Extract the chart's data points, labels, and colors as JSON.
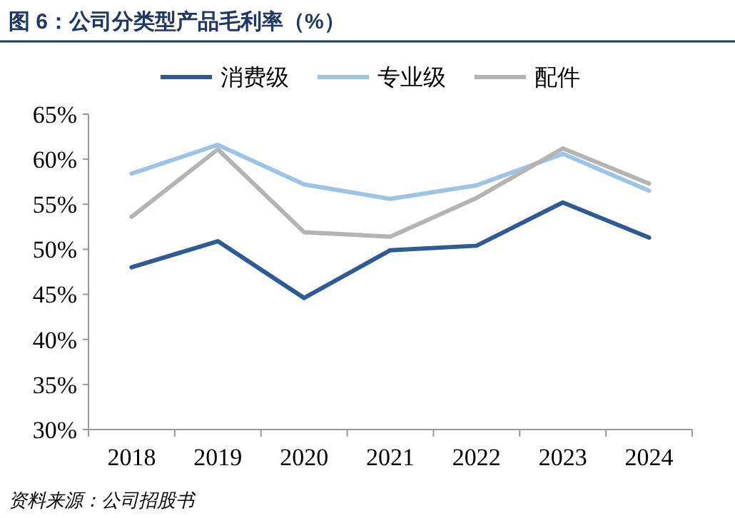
{
  "chart_data": {
    "type": "line",
    "title": "图 6：公司分类型产品毛利率（%）",
    "categories": [
      "2018",
      "2019",
      "2020",
      "2021",
      "2022",
      "2023",
      "2024"
    ],
    "series": [
      {
        "name": "消费级",
        "color": "#2f5b94",
        "values": [
          48.0,
          50.9,
          44.6,
          49.9,
          50.4,
          55.2,
          51.3
        ]
      },
      {
        "name": "专业级",
        "color": "#9dc3e6",
        "values": [
          58.4,
          61.6,
          57.2,
          55.6,
          57.1,
          60.6,
          56.5
        ]
      },
      {
        "name": "配件",
        "color": "#b4b4b4",
        "values": [
          53.6,
          61.1,
          51.9,
          51.4,
          55.7,
          61.2,
          57.3
        ]
      }
    ],
    "ylim": [
      30,
      65
    ],
    "yticks": [
      {
        "value": 30,
        "label": "30%"
      },
      {
        "value": 35,
        "label": "35%"
      },
      {
        "value": 40,
        "label": "40%"
      },
      {
        "value": 45,
        "label": "45%"
      },
      {
        "value": 50,
        "label": "50%"
      },
      {
        "value": 55,
        "label": "55%"
      },
      {
        "value": 60,
        "label": "60%"
      },
      {
        "value": 65,
        "label": "65%"
      }
    ],
    "legend": "top",
    "grid": false,
    "marker": "none",
    "line_style": "solid",
    "annotations": [
      "资料来源：公司招股书"
    ]
  }
}
